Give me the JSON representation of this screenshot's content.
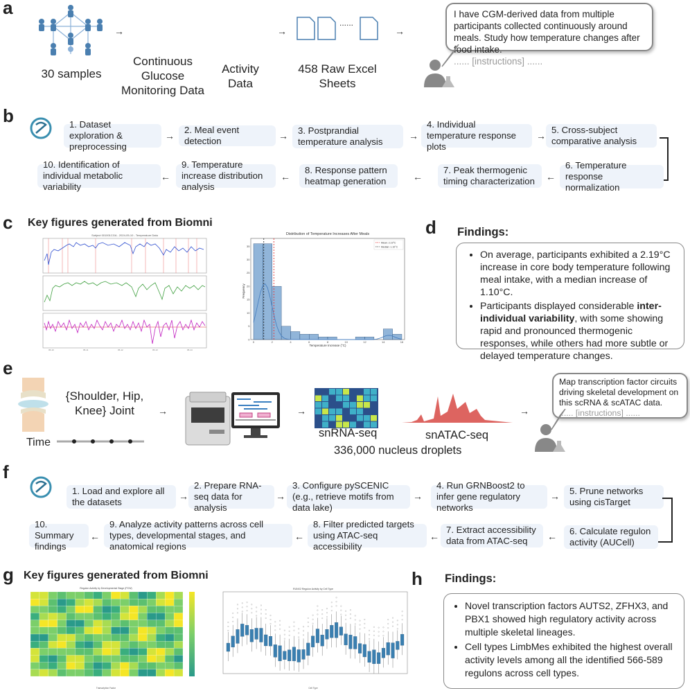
{
  "panel_a": {
    "label": "a",
    "samples": "30 samples",
    "cgm": "Continuous Glucose Monitoring Data",
    "activity": "Activity Data",
    "sheets": "458 Raw Excel Sheets",
    "dots": "......",
    "prompt": "I have CGM-derived data from multiple participants collected continuously around meals. Study how temperature changes after food intake.",
    "prompt_instr": "...... [instructions] ......"
  },
  "panel_b": {
    "label": "b",
    "steps": [
      "1. Dataset exploration & preprocessing",
      "2. Meal event detection",
      "3. Postprandial temperature analysis",
      "4. Individual temperature response plots",
      "5. Cross-subject comparative analysis",
      "6. Temperature response normalization",
      "7. Peak thermogenic timing characterization",
      "8. Response pattern heatmap generation",
      "9. Temperature increase distribution analysis",
      "10. Identification of individual metabolic variability"
    ]
  },
  "panel_c": {
    "label": "c",
    "title": "Key figures generated from Biomni",
    "ts_title": "Subject 001001CGA - 2024-05-10 - Temperature Data",
    "hist_title": "Distribution of Temperature Increases After Meals",
    "hist_xlabel": "Temperature Increase (°C)",
    "hist_ylabel": "Frequency",
    "legend_mean": "Mean: 2.19°C",
    "legend_median": "Median: 1.10°C"
  },
  "panel_d": {
    "label": "d",
    "heading": "Findings:",
    "b1": "On average, participants exhibited a 2.19°C increase in core body temperature following meal intake, with a median increase of 1.10°C.",
    "b2_pre": "Participants displayed considerable ",
    "b2_bold": "inter-individual variability",
    "b2_post": ", with some showing rapid and pronounced thermogenic responses, while others had more subtle or delayed temperature changes."
  },
  "panel_e": {
    "label": "e",
    "joints": "{Shoulder, Hip, Knee} Joint",
    "time": "Time",
    "snrna": "snRNA-seq",
    "snatac": "snATAC-seq",
    "droplets": "336,000 nucleus droplets",
    "prompt": "Map transcription factor circuits driving skeletal development on this scRNA & scATAC data.",
    "prompt_instr": "...... [instructions] ......"
  },
  "panel_f": {
    "label": "f",
    "steps": [
      "1. Load and explore all the datasets",
      "2. Prepare RNA-seq data for analysis",
      "3. Configure pySCENIC (e.g., retrieve motifs from data lake)",
      "4. Run GRNBoost2 to infer gene regulatory networks",
      "5. Prune networks using cisTarget",
      "6. Calculate regulon activity (AUCell)",
      "7. Extract accessibility data from ATAC-seq",
      "8. Filter predicted targets using ATAC-seq accessibility",
      "9. Analyze activity patterns across cell types, developmental stages, and anatomical regions",
      "10. Summary findings"
    ]
  },
  "panel_g": {
    "label": "g",
    "title": "Key figures generated from Biomni",
    "heat_title": "Regulon Activity by Developmental Stage (PCW)",
    "box_title": "RUNX2 Regulon Activity by Cell Type",
    "heat_xlabel": "Transcription Factor",
    "box_xlabel": "Cell Type"
  },
  "panel_h": {
    "label": "h",
    "heading": "Findings:",
    "b1": "Novel transcription factors AUTS2, ZFHX3, and PBX1 showed high regulatory activity across multiple skeletal lineages.",
    "b2": "Cell types LimbMes exhibited the highest overall activity levels among all the identified 566-589 regulons across cell types."
  },
  "chart_data": [
    {
      "type": "bar",
      "title": "Distribution of Temperature Increases After Meals",
      "xlabel": "Temperature Increase (°C)",
      "ylabel": "Frequency",
      "categories": [
        "0-1",
        "1-2",
        "2-3",
        "3-4",
        "4-5",
        "5-6",
        "6-7",
        "7-8",
        "8-9",
        "9-10",
        "10-11",
        "11-12",
        "12-13",
        "13-14",
        "14-15",
        "15-16"
      ],
      "values": [
        36,
        36,
        20,
        5,
        3,
        2,
        2,
        1,
        1,
        0,
        0,
        1,
        1,
        0,
        4,
        2
      ],
      "xlim": [
        0,
        16
      ],
      "ylim": [
        0,
        38
      ],
      "mean": 2.19,
      "median": 1.1
    }
  ],
  "colors": {
    "step_bg": "#eef3fa",
    "hist_bar": "#6c9ccc",
    "mean_line": "#e03030",
    "median_line": "#333333",
    "signal_blue": "#3050d0",
    "signal_green": "#40a040",
    "signal_magenta": "#c020c0",
    "atac_red": "#d9534f"
  }
}
